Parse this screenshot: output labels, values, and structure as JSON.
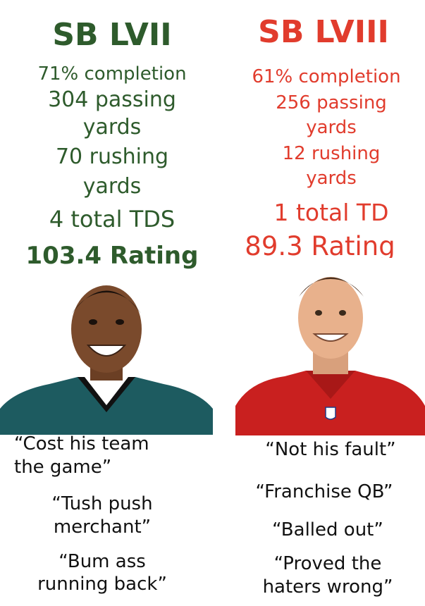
{
  "colors": {
    "left_accent": "#2e5b2c",
    "right_accent": "#e13c2d",
    "quote_text": "#111111"
  },
  "left": {
    "title": "SB LVII",
    "stats": [
      "71% completion",
      "304 passing",
      "yards",
      "70 rushing",
      "yards",
      "4 total TDS",
      "103.4 Rating"
    ],
    "photo": "jersey-green-player-icon",
    "quotes": [
      "“Cost his team",
      "the game”",
      "“Tush push",
      "merchant”",
      "“Bum ass",
      "running back”"
    ]
  },
  "right": {
    "title": "SB LVIII",
    "stats": [
      "61% completion",
      "256 passing",
      "yards",
      "12 rushing",
      "yards",
      "1 total TD",
      "89.3 Rating"
    ],
    "photo": "jersey-red-player-icon",
    "quotes": [
      "“Not his fault”",
      "“Franchise QB”",
      "“Balled out”",
      "“Proved the",
      "haters wrong”"
    ]
  }
}
